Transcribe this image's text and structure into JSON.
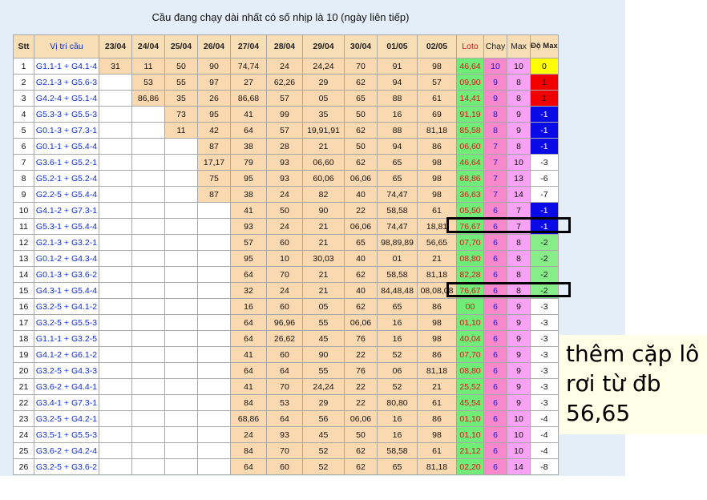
{
  "title": "Cầu đang chạy dài nhất có số nhịp là 10 (ngày liên tiếp)",
  "headers": [
    "Stt",
    "Vị trí cầu",
    "23/04",
    "24/04",
    "25/04",
    "26/04",
    "27/04",
    "28/04",
    "29/04",
    "30/04",
    "01/05",
    "02/05",
    "Loto",
    "Chạy",
    "Max",
    "Độ Max"
  ],
  "colors": {
    "filled": "#fbd9b0",
    "loto": "#70ec78",
    "chay": "#f888cc",
    "max": "#f7a2f4",
    "yellow": "#ffff00",
    "red": "#f20000",
    "blue": "#0a0ae6",
    "green": "#88ec88",
    "white": "#ffffff"
  },
  "rows": [
    {
      "stt": "1",
      "pos": "G1.1-1 + G4.1-4",
      "vals": [
        "31",
        "11",
        "50",
        "90",
        "74,74",
        "24",
        "24,24",
        "70",
        "91",
        "98"
      ],
      "loto": "46,64",
      "chay": "10",
      "max": "10",
      "do": "0",
      "do_bg": "yellow"
    },
    {
      "stt": "2",
      "pos": "G2.1-3 + G5.6-3",
      "vals": [
        "",
        "53",
        "55",
        "97",
        "27",
        "62,26",
        "29",
        "62",
        "94",
        "57"
      ],
      "loto": "09,90",
      "chay": "9",
      "max": "8",
      "do": "1",
      "do_bg": "red"
    },
    {
      "stt": "3",
      "pos": "G4.2-4 + G5.1-4",
      "vals": [
        "",
        "86,86",
        "35",
        "26",
        "86,68",
        "57",
        "05",
        "65",
        "88",
        "61"
      ],
      "loto": "14,41",
      "chay": "9",
      "max": "8",
      "do": "1",
      "do_bg": "red"
    },
    {
      "stt": "4",
      "pos": "G5.3-3 + G5.5-3",
      "vals": [
        "",
        "",
        "73",
        "95",
        "41",
        "99",
        "35",
        "50",
        "16",
        "69"
      ],
      "loto": "91,19",
      "chay": "8",
      "max": "9",
      "do": "-1",
      "do_bg": "blue"
    },
    {
      "stt": "5",
      "pos": "G0.1-3 + G7.3-1",
      "vals": [
        "",
        "",
        "11",
        "42",
        "64",
        "57",
        "19,91,91",
        "62",
        "88",
        "81,18"
      ],
      "loto": "85,58",
      "chay": "8",
      "max": "9",
      "do": "-1",
      "do_bg": "blue"
    },
    {
      "stt": "6",
      "pos": "G0.1-1 + G5.4-4",
      "vals": [
        "",
        "",
        "",
        "87",
        "38",
        "28",
        "21",
        "50",
        "94",
        "86"
      ],
      "loto": "06,60",
      "chay": "7",
      "max": "8",
      "do": "-1",
      "do_bg": "blue"
    },
    {
      "stt": "7",
      "pos": "G3.6-1 + G5.2-1",
      "vals": [
        "",
        "",
        "",
        "17,17",
        "79",
        "93",
        "06,60",
        "62",
        "65",
        "98"
      ],
      "loto": "46,64",
      "chay": "7",
      "max": "10",
      "do": "-3",
      "do_bg": "white"
    },
    {
      "stt": "8",
      "pos": "G5.2-1 + G5.2-4",
      "vals": [
        "",
        "",
        "",
        "75",
        "95",
        "93",
        "60,06",
        "06,06",
        "65",
        "98"
      ],
      "loto": "68,86",
      "chay": "7",
      "max": "13",
      "do": "-6",
      "do_bg": "white"
    },
    {
      "stt": "9",
      "pos": "G2.2-5 + G5.4-4",
      "vals": [
        "",
        "",
        "",
        "87",
        "38",
        "24",
        "82",
        "40",
        "74,47",
        "98"
      ],
      "loto": "36,63",
      "chay": "7",
      "max": "14",
      "do": "-7",
      "do_bg": "white"
    },
    {
      "stt": "10",
      "pos": "G4.1-2 + G7.3-1",
      "vals": [
        "",
        "",
        "",
        "",
        "41",
        "50",
        "90",
        "22",
        "58,58",
        "61"
      ],
      "loto": "05,50",
      "chay": "6",
      "max": "7",
      "do": "-1",
      "do_bg": "blue"
    },
    {
      "stt": "11",
      "pos": "G5.3-1 + G5.4-4",
      "vals": [
        "",
        "",
        "",
        "",
        "93",
        "24",
        "21",
        "06,06",
        "74,47",
        "18,81"
      ],
      "loto": "76,67",
      "chay": "6",
      "max": "7",
      "do": "-1",
      "do_bg": "blue"
    },
    {
      "stt": "12",
      "pos": "G2.1-3 + G3.2-1",
      "vals": [
        "",
        "",
        "",
        "",
        "57",
        "60",
        "21",
        "65",
        "98,89,89",
        "56,65"
      ],
      "loto": "07,70",
      "chay": "6",
      "max": "8",
      "do": "-2",
      "do_bg": "green"
    },
    {
      "stt": "13",
      "pos": "G0.1-2 + G4.3-4",
      "vals": [
        "",
        "",
        "",
        "",
        "95",
        "10",
        "30,03",
        "40",
        "01",
        "21"
      ],
      "loto": "08,80",
      "chay": "6",
      "max": "8",
      "do": "-2",
      "do_bg": "green"
    },
    {
      "stt": "14",
      "pos": "G0.1-3 + G3.6-2",
      "vals": [
        "",
        "",
        "",
        "",
        "64",
        "70",
        "21",
        "62",
        "58,58",
        "81,18"
      ],
      "loto": "82,28",
      "chay": "6",
      "max": "8",
      "do": "-2",
      "do_bg": "green"
    },
    {
      "stt": "15",
      "pos": "G4.3-1 + G5.4-4",
      "vals": [
        "",
        "",
        "",
        "",
        "32",
        "24",
        "21",
        "40",
        "84,48,48",
        "08,08,08"
      ],
      "loto": "76,67",
      "chay": "6",
      "max": "8",
      "do": "-2",
      "do_bg": "green"
    },
    {
      "stt": "16",
      "pos": "G3.2-5 + G4.1-2",
      "vals": [
        "",
        "",
        "",
        "",
        "16",
        "60",
        "05",
        "62",
        "65",
        "86"
      ],
      "loto": "00",
      "chay": "6",
      "max": "9",
      "do": "-3",
      "do_bg": "white"
    },
    {
      "stt": "17",
      "pos": "G3.2-5 + G5.5-3",
      "vals": [
        "",
        "",
        "",
        "",
        "64",
        "96,96",
        "55",
        "06,06",
        "16",
        "98"
      ],
      "loto": "01,10",
      "chay": "6",
      "max": "9",
      "do": "-3",
      "do_bg": "white"
    },
    {
      "stt": "18",
      "pos": "G1.1-1 + G3.2-5",
      "vals": [
        "",
        "",
        "",
        "",
        "64",
        "26,62",
        "45",
        "76",
        "16",
        "98"
      ],
      "loto": "40,04",
      "chay": "6",
      "max": "9",
      "do": "-3",
      "do_bg": "white"
    },
    {
      "stt": "19",
      "pos": "G4.1-2 + G6.1-2",
      "vals": [
        "",
        "",
        "",
        "",
        "41",
        "60",
        "90",
        "22",
        "52",
        "86"
      ],
      "loto": "07,70",
      "chay": "6",
      "max": "9",
      "do": "-3",
      "do_bg": "white"
    },
    {
      "stt": "20",
      "pos": "G3.2-5 + G4.3-3",
      "vals": [
        "",
        "",
        "",
        "",
        "64",
        "64",
        "55",
        "76",
        "06",
        "81,18"
      ],
      "loto": "08,80",
      "chay": "6",
      "max": "9",
      "do": "-3",
      "do_bg": "white"
    },
    {
      "stt": "21",
      "pos": "G3.6-2 + G4.4-1",
      "vals": [
        "",
        "",
        "",
        "",
        "41",
        "70",
        "24,24",
        "22",
        "52",
        "21"
      ],
      "loto": "25,52",
      "chay": "6",
      "max": "9",
      "do": "-3",
      "do_bg": "white"
    },
    {
      "stt": "22",
      "pos": "G3.4-1 + G7.3-1",
      "vals": [
        "",
        "",
        "",
        "",
        "84",
        "53",
        "29",
        "22",
        "80,80",
        "61"
      ],
      "loto": "45,54",
      "chay": "6",
      "max": "9",
      "do": "-3",
      "do_bg": "white"
    },
    {
      "stt": "23",
      "pos": "G3.2-5 + G4.2-1",
      "vals": [
        "",
        "",
        "",
        "",
        "68,86",
        "64",
        "56",
        "06,06",
        "16",
        "86"
      ],
      "loto": "01,10",
      "chay": "6",
      "max": "10",
      "do": "-4",
      "do_bg": "white"
    },
    {
      "stt": "24",
      "pos": "G3.5-1 + G5.5-3",
      "vals": [
        "",
        "",
        "",
        "",
        "24",
        "93",
        "45",
        "50",
        "16",
        "98"
      ],
      "loto": "01,10",
      "chay": "6",
      "max": "10",
      "do": "-4",
      "do_bg": "white"
    },
    {
      "stt": "25",
      "pos": "G3.6-2 + G4.2-4",
      "vals": [
        "",
        "",
        "",
        "",
        "84",
        "70",
        "52",
        "62",
        "58,58",
        "61"
      ],
      "loto": "21,12",
      "chay": "6",
      "max": "10",
      "do": "-4",
      "do_bg": "white"
    },
    {
      "stt": "26",
      "pos": "G3.2-5 + G3.6-2",
      "vals": [
        "",
        "",
        "",
        "",
        "64",
        "60",
        "52",
        "62",
        "65",
        "81,18"
      ],
      "loto": "02,20",
      "chay": "6",
      "max": "14",
      "do": "-8",
      "do_bg": "white"
    }
  ],
  "note": {
    "lines": [
      "thêm cặp lô",
      "rơi từ đb",
      "56,65"
    ]
  }
}
